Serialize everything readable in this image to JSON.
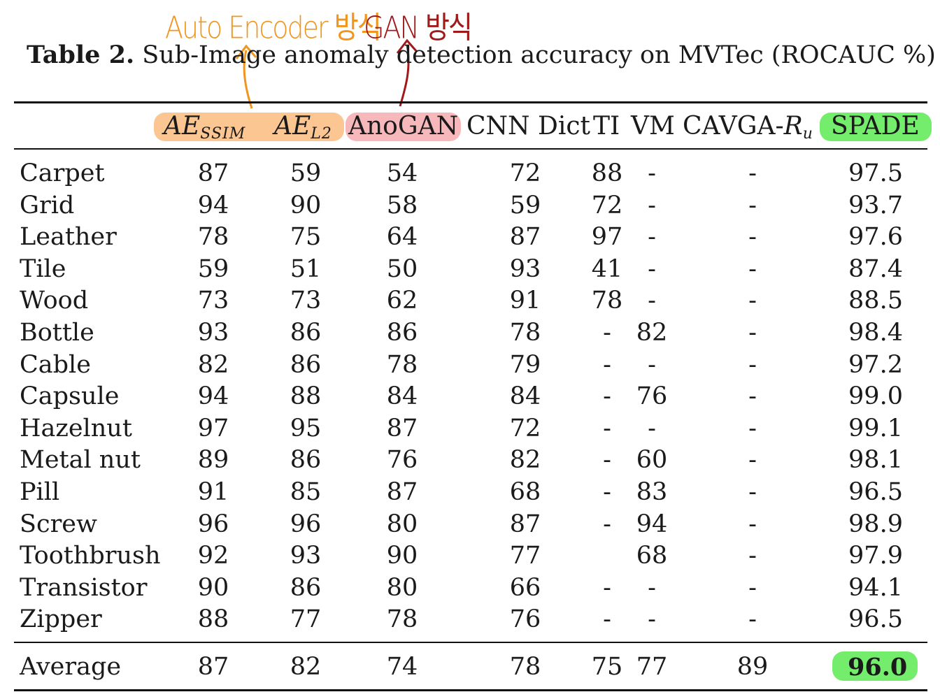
{
  "annotations": {
    "autoencoder": "Auto Encoder 방식",
    "gan": "GAN 방식"
  },
  "caption": {
    "label": "Table 2.",
    "text": " Sub-Image anomaly detection accuracy on MVTec (ROCAUC %)"
  },
  "colors": {
    "autoencoder_highlight": "#fbc691",
    "gan_highlight": "#f7b8bb",
    "spade_highlight": "#74ec6c",
    "autoencoder_annotation": "#f0961e",
    "gan_annotation": "#a01a1a"
  },
  "table": {
    "headers": {
      "ae_ssim": {
        "base": "AE",
        "sub": "SSIM"
      },
      "ae_l2": {
        "base": "AE",
        "sub": "L2"
      },
      "anogan": "AnoGAN",
      "cnn_dict": "CNN Dict",
      "ti": "TI",
      "vm": "VM",
      "cavga": {
        "base": "CAVGA-",
        "var": "R",
        "sub": "u"
      },
      "spade": "SPADE"
    },
    "rows": [
      {
        "name": "Carpet",
        "values": [
          "87",
          "59",
          "54",
          "72",
          "88",
          "-",
          "-",
          "97.5"
        ]
      },
      {
        "name": "Grid",
        "values": [
          "94",
          "90",
          "58",
          "59",
          "72",
          "-",
          "-",
          "93.7"
        ]
      },
      {
        "name": "Leather",
        "values": [
          "78",
          "75",
          "64",
          "87",
          "97",
          "-",
          "-",
          "97.6"
        ]
      },
      {
        "name": "Tile",
        "values": [
          "59",
          "51",
          "50",
          "93",
          "41",
          "-",
          "-",
          "87.4"
        ]
      },
      {
        "name": "Wood",
        "values": [
          "73",
          "73",
          "62",
          "91",
          "78",
          "-",
          "-",
          "88.5"
        ]
      },
      {
        "name": "Bottle",
        "values": [
          "93",
          "86",
          "86",
          "78",
          "-",
          "82",
          "-",
          "98.4"
        ]
      },
      {
        "name": "Cable",
        "values": [
          "82",
          "86",
          "78",
          "79",
          "-",
          "-",
          "-",
          "97.2"
        ]
      },
      {
        "name": "Capsule",
        "values": [
          "94",
          "88",
          "84",
          "84",
          "-",
          "76",
          "-",
          "99.0"
        ]
      },
      {
        "name": "Hazelnut",
        "values": [
          "97",
          "95",
          "87",
          "72",
          "-",
          "-",
          "-",
          "99.1"
        ]
      },
      {
        "name": "Metal nut",
        "values": [
          "89",
          "86",
          "76",
          "82",
          "-",
          "60",
          "-",
          "98.1"
        ]
      },
      {
        "name": "Pill",
        "values": [
          "91",
          "85",
          "87",
          "68",
          "-",
          "83",
          "-",
          "96.5"
        ]
      },
      {
        "name": "Screw",
        "values": [
          "96",
          "96",
          "80",
          "87",
          "-",
          "94",
          "-",
          "98.9"
        ]
      },
      {
        "name": "Toothbrush",
        "values": [
          "92",
          "93",
          "90",
          "77",
          "",
          "68",
          "-",
          "97.9"
        ]
      },
      {
        "name": "Transistor",
        "values": [
          "90",
          "86",
          "80",
          "66",
          "-",
          "-",
          "-",
          "94.1"
        ]
      },
      {
        "name": "Zipper",
        "values": [
          "88",
          "77",
          "78",
          "76",
          "-",
          "-",
          "-",
          "96.5"
        ]
      }
    ],
    "average": {
      "name": "Average",
      "values": [
        "87",
        "82",
        "74",
        "78",
        "75",
        "77",
        "89",
        "96.0"
      ]
    }
  }
}
